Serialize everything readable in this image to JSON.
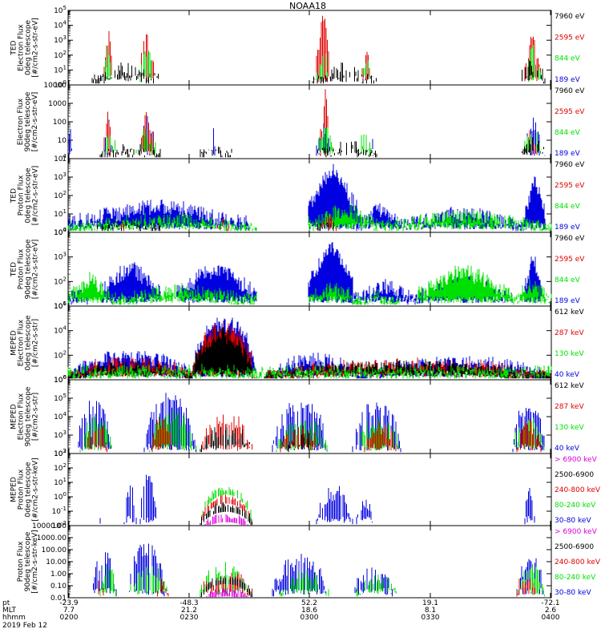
{
  "colors": {
    "black": "#000000",
    "red": "#e00000",
    "green": "#00e000",
    "blue": "#0000e0",
    "magenta": "#e000e0"
  },
  "chart_data": {
    "type": "line",
    "title": "NOAA18",
    "date_label": "2019 Feb 12",
    "x_axis": {
      "row_labels": [
        "pt",
        "MLT",
        "hhmm"
      ],
      "ticks": [
        {
          "pt": "-23.9",
          "mlt": "7.7",
          "hhmm": "0200"
        },
        {
          "pt": "-48.3",
          "mlt": "21.2",
          "hhmm": "0230"
        },
        {
          "pt": "52.2",
          "mlt": "18.6",
          "hhmm": "0300"
        },
        {
          "pt": "19.1",
          "mlt": "8.1",
          "hhmm": "0330"
        },
        {
          "pt": "-72.1",
          "mlt": "2.6",
          "hhmm": "0400"
        }
      ]
    },
    "panels": [
      {
        "ylabel": [
          "TED",
          "Electron Flux",
          "0deg telescope",
          "[#/cm2-s-str-eV]"
        ],
        "yticks": [
          "10^0",
          "10^1",
          "10^2",
          "10^3",
          "10^4",
          "10^5"
        ],
        "log_range": [
          0,
          5
        ],
        "legend": [
          {
            "label": "7960 eV",
            "color": "black"
          },
          {
            "label": "2595 eV",
            "color": "red"
          },
          {
            "label": "844 eV",
            "color": "green"
          },
          {
            "label": "189 eV",
            "color": "blue"
          }
        ]
      },
      {
        "ylabel": [
          "Electron Flux",
          "90deg telescope",
          "[#/cm2-s-str-eV]"
        ],
        "yticks": [
          "1",
          "10",
          "100",
          "1000",
          "10000"
        ],
        "log_range": [
          0,
          4
        ],
        "legend": [
          {
            "label": "7960 eV",
            "color": "black"
          },
          {
            "label": "2595 eV",
            "color": "red"
          },
          {
            "label": "844 eV",
            "color": "green"
          },
          {
            "label": "189 eV",
            "color": "blue"
          }
        ]
      },
      {
        "ylabel": [
          "TED",
          "Proton Flux",
          "0deg telescope",
          "[#/cm2-s-str-eV]"
        ],
        "yticks": [
          "10^0",
          "10^1",
          "10^2",
          "10^3",
          "10^4"
        ],
        "log_range": [
          0,
          4
        ],
        "legend": [
          {
            "label": "7960 eV",
            "color": "black"
          },
          {
            "label": "2595 eV",
            "color": "red"
          },
          {
            "label": "844 eV",
            "color": "green"
          },
          {
            "label": "189 eV",
            "color": "blue"
          }
        ]
      },
      {
        "ylabel": [
          "TED",
          "Proton Flux",
          "90deg telescope",
          "[#/cm2-s-str-eV]"
        ],
        "yticks": [
          "10^1",
          "10^2",
          "10^3",
          "10^4"
        ],
        "log_range": [
          1,
          4
        ],
        "legend": [
          {
            "label": "7960 eV",
            "color": "black"
          },
          {
            "label": "2595 eV",
            "color": "red"
          },
          {
            "label": "844 eV",
            "color": "green"
          },
          {
            "label": "189 eV",
            "color": "blue"
          }
        ]
      },
      {
        "ylabel": [
          "MEPED",
          "Electron Flux",
          "0deg telescope",
          "[#/cm2-s-str]"
        ],
        "yticks": [
          "10^0",
          "10^2",
          "10^4",
          "10^6"
        ],
        "log_range": [
          0,
          6
        ],
        "legend": [
          {
            "label": "612 keV",
            "color": "black"
          },
          {
            "label": "287 keV",
            "color": "red"
          },
          {
            "label": "130 keV",
            "color": "green"
          },
          {
            "label": "40 keV",
            "color": "blue"
          }
        ]
      },
      {
        "ylabel": [
          "MEPED",
          "Electron Flux",
          "90deg telescope",
          "[#/cm2-s-str]"
        ],
        "yticks": [
          "10^2",
          "10^3",
          "10^4",
          "10^5",
          "10^6"
        ],
        "log_range": [
          2,
          6
        ],
        "legend": [
          {
            "label": "612 keV",
            "color": "black"
          },
          {
            "label": "287 keV",
            "color": "red"
          },
          {
            "label": "130 keV",
            "color": "green"
          },
          {
            "label": "40 keV",
            "color": "blue"
          }
        ]
      },
      {
        "ylabel": [
          "MEPED",
          "Proton Flux",
          "0deg telescope",
          "[#/cm2-s-str-keV]"
        ],
        "yticks": [
          "10^-2",
          "10^-1",
          "10^0",
          "10^1",
          "10^2",
          "10^3"
        ],
        "log_range": [
          -2,
          3
        ],
        "legend": [
          {
            "label": "> 6900 keV",
            "color": "magenta"
          },
          {
            "label": "2500-6900",
            "color": "black"
          },
          {
            "label": "240-800 keV",
            "color": "red"
          },
          {
            "label": "80-240 keV",
            "color": "green"
          },
          {
            "label": "30-80 keV",
            "color": "blue"
          }
        ]
      },
      {
        "ylabel": [
          "Proton Flux",
          "90deg telescope",
          "[#/cm2-s-str-keV]"
        ],
        "yticks": [
          "0.01",
          "0.10",
          "1.00",
          "10.00",
          "100.00",
          "1000.00",
          "10000.00"
        ],
        "log_range": [
          -2,
          4
        ],
        "legend": [
          {
            "label": "> 6900 keV",
            "color": "magenta"
          },
          {
            "label": "2500-6900",
            "color": "black"
          },
          {
            "label": "240-800 keV",
            "color": "red"
          },
          {
            "label": "80-240 keV",
            "color": "green"
          },
          {
            "label": "30-80 keV",
            "color": "blue"
          }
        ]
      }
    ]
  }
}
